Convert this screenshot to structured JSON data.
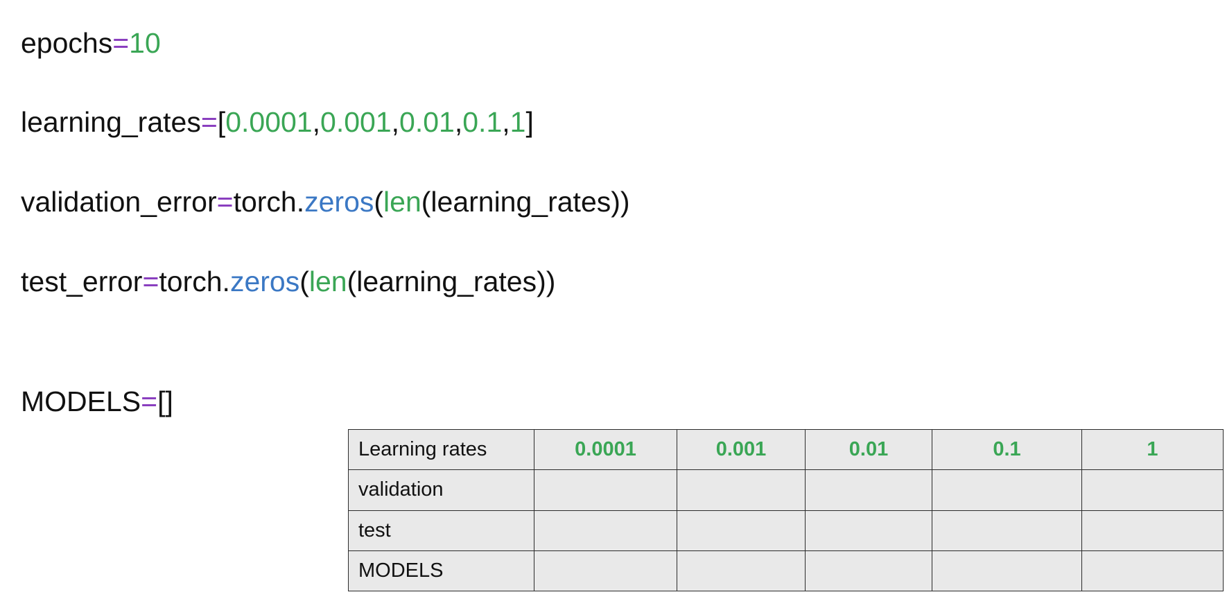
{
  "code": {
    "epochs": {
      "name": "epochs",
      "op": "=",
      "value": "10"
    },
    "learning_rates": {
      "name": "learning_rates",
      "op": "=",
      "open": "[",
      "close": "]",
      "sep": ",",
      "values": [
        "0.0001",
        "0.001",
        "0.01",
        "0.1",
        "1"
      ]
    },
    "validation_error": {
      "name": "validation_error",
      "op": "=",
      "module": "torch.",
      "fn": "zeros",
      "paren_open": "(",
      "builtin": "len",
      "arg_open": "(",
      "arg": "learning_rates",
      "close": "))"
    },
    "test_error": {
      "name": "test_error",
      "op": "=",
      "module": "torch.",
      "fn": "zeros",
      "paren_open": "(",
      "builtin": "len",
      "arg_open": "(",
      "arg": "learning_rates",
      "close": "))"
    },
    "models": {
      "name": "MODELS",
      "op": "=",
      "value": "[]"
    }
  },
  "table": {
    "header": {
      "label": "Learning rates",
      "values": [
        "0.0001",
        "0.001",
        "0.01",
        "0.1",
        "1"
      ]
    },
    "rows": [
      {
        "label": "validation",
        "cells": [
          "",
          "",
          "",
          "",
          ""
        ]
      },
      {
        "label": "test",
        "cells": [
          "",
          "",
          "",
          "",
          ""
        ]
      },
      {
        "label": "MODELS",
        "cells": [
          "",
          "",
          "",
          "",
          ""
        ]
      }
    ]
  },
  "colors": {
    "operator": "#8a3fbf",
    "number": "#3aa655",
    "function": "#3b78c4",
    "builtin": "#3aa655",
    "table_background": "#e9e9e9"
  }
}
